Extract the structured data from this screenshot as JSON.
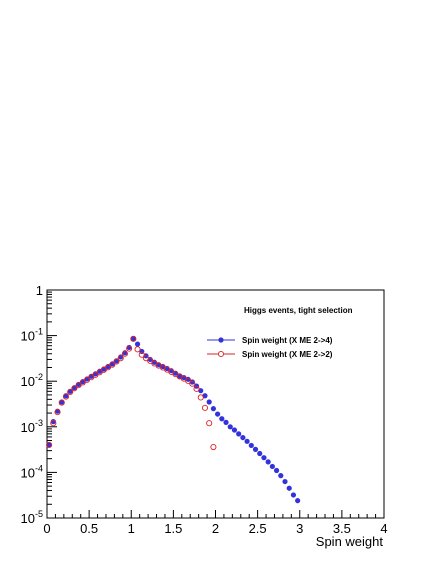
{
  "chart_data": {
    "type": "scatter",
    "title": "",
    "annotation": "Higgs events, tight selection",
    "xlabel": "Spin weight",
    "ylabel": "",
    "xlim": [
      0,
      4
    ],
    "ylim": [
      1e-05,
      1
    ],
    "yscale": "log",
    "grid": false,
    "legend_position": "top-right",
    "x_ticks": [
      0,
      0.5,
      1,
      1.5,
      2,
      2.5,
      3,
      3.5,
      4
    ],
    "x_tick_labels": [
      "0",
      "0.5",
      "1",
      "1.5",
      "2",
      "2.5",
      "3",
      "3.5",
      "4"
    ],
    "y_ticks": [
      1e-05,
      0.0001,
      0.001,
      0.01,
      0.1,
      1
    ],
    "y_tick_labels": [
      {
        "base": "10",
        "exp": "-5"
      },
      {
        "base": "10",
        "exp": "-4"
      },
      {
        "base": "10",
        "exp": "-3"
      },
      {
        "base": "10",
        "exp": "-2"
      },
      {
        "base": "10",
        "exp": "-1"
      },
      {
        "base": "1",
        "exp": ""
      }
    ],
    "series": [
      {
        "name": "Spin weight (X ME 2->4)",
        "color": "#3333dd",
        "marker": "filled-circle",
        "x": [
          0.025,
          0.075,
          0.125,
          0.175,
          0.225,
          0.275,
          0.325,
          0.375,
          0.425,
          0.475,
          0.525,
          0.575,
          0.625,
          0.675,
          0.725,
          0.775,
          0.825,
          0.875,
          0.925,
          0.975,
          1.025,
          1.075,
          1.125,
          1.175,
          1.225,
          1.275,
          1.325,
          1.375,
          1.425,
          1.475,
          1.525,
          1.575,
          1.625,
          1.675,
          1.725,
          1.775,
          1.825,
          1.875,
          1.925,
          1.975,
          2.025,
          2.075,
          2.125,
          2.175,
          2.225,
          2.275,
          2.325,
          2.375,
          2.425,
          2.475,
          2.525,
          2.575,
          2.625,
          2.675,
          2.725,
          2.775,
          2.825,
          2.875,
          2.925,
          2.975
        ],
        "y": [
          0.0004,
          0.0013,
          0.0022,
          0.0035,
          0.0048,
          0.006,
          0.0072,
          0.0085,
          0.0098,
          0.0112,
          0.0128,
          0.0145,
          0.0165,
          0.0185,
          0.021,
          0.024,
          0.028,
          0.034,
          0.042,
          0.055,
          0.085,
          0.065,
          0.045,
          0.036,
          0.03,
          0.026,
          0.023,
          0.021,
          0.019,
          0.017,
          0.015,
          0.013,
          0.012,
          0.011,
          0.0096,
          0.0078,
          0.0062,
          0.0048,
          0.0035,
          0.0025,
          0.0019,
          0.0015,
          0.00125,
          0.001,
          0.00085,
          0.0007,
          0.00058,
          0.00048,
          0.00039,
          0.00032,
          0.00026,
          0.00021,
          0.00017,
          0.000135,
          0.00011,
          8.5e-05,
          6.3e-05,
          4.5e-05,
          3.2e-05,
          2.4e-05
        ]
      },
      {
        "name": "Spin weight (X ME 2->2)",
        "color": "#dd2222",
        "marker": "open-circle",
        "x": [
          0.025,
          0.075,
          0.125,
          0.175,
          0.225,
          0.275,
          0.325,
          0.375,
          0.425,
          0.475,
          0.525,
          0.575,
          0.625,
          0.675,
          0.725,
          0.775,
          0.825,
          0.875,
          0.925,
          0.975,
          1.025,
          1.075,
          1.125,
          1.175,
          1.225,
          1.275,
          1.325,
          1.375,
          1.425,
          1.475,
          1.525,
          1.575,
          1.625,
          1.675,
          1.725,
          1.775,
          1.825,
          1.875,
          1.925,
          1.975
        ],
        "y": [
          0.0004,
          0.0012,
          0.0021,
          0.0034,
          0.0046,
          0.0058,
          0.007,
          0.0082,
          0.0094,
          0.0107,
          0.0122,
          0.0138,
          0.0157,
          0.0178,
          0.0202,
          0.023,
          0.027,
          0.032,
          0.04,
          0.052,
          0.085,
          0.05,
          0.038,
          0.032,
          0.028,
          0.0245,
          0.022,
          0.02,
          0.018,
          0.016,
          0.0143,
          0.0127,
          0.0114,
          0.0102,
          0.0088,
          0.0068,
          0.0044,
          0.0026,
          0.0012,
          0.00036
        ]
      }
    ]
  }
}
